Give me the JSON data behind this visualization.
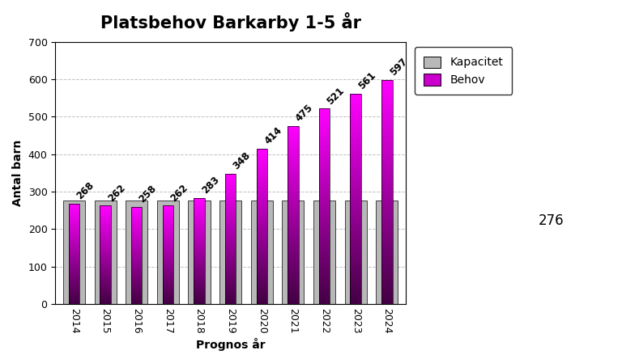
{
  "title": "Platsbehov Barkarby 1-5 år",
  "xlabel": "Prognos år",
  "ylabel": "Antal barn",
  "years": [
    2014,
    2015,
    2016,
    2017,
    2018,
    2019,
    2020,
    2021,
    2022,
    2023,
    2024
  ],
  "kapacitet": [
    276,
    276,
    276,
    276,
    276,
    276,
    276,
    276,
    276,
    276,
    276
  ],
  "behov": [
    268,
    262,
    258,
    262,
    283,
    348,
    414,
    475,
    521,
    561,
    597
  ],
  "kapacitet_color": "#b8b8b8",
  "ylim": [
    0,
    700
  ],
  "yticks": [
    0,
    100,
    200,
    300,
    400,
    500,
    600,
    700
  ],
  "legend_label_kapacitet": "Kapacitet",
  "legend_label_behov": "Behov",
  "annotation_276": "276",
  "kap_bar_width": 0.7,
  "beh_bar_width": 0.35,
  "title_fontsize": 15,
  "label_fontsize": 10,
  "tick_fontsize": 9,
  "annot_fontsize": 8.5,
  "background_color": "#ffffff",
  "grid_color": "#c0c0c0"
}
